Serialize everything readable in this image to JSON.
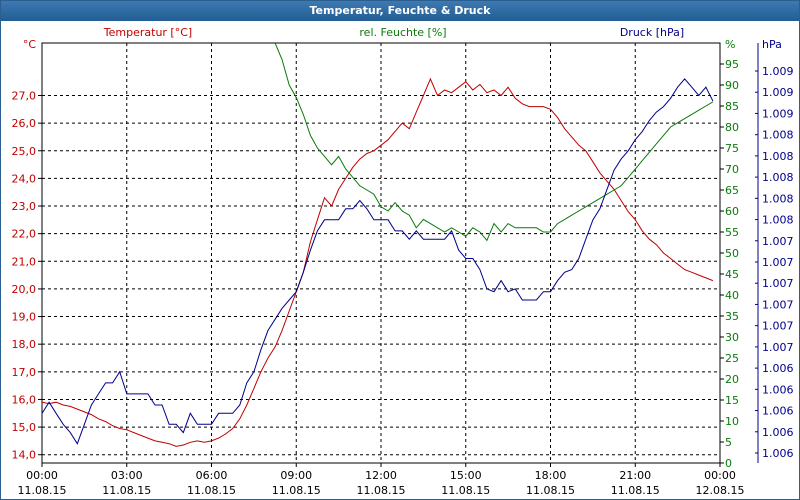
{
  "window": {
    "title": "Temperatur, Feuchte & Druck"
  },
  "colors": {
    "temperature": "#c00000",
    "humidity": "#0a7a0a",
    "pressure": "#00008b",
    "grid": "#000000",
    "titlebar": "#2a6aa5"
  },
  "chart_data": {
    "type": "line",
    "title": "Temperatur, Feuchte & Druck",
    "grid": true,
    "x_axis": {
      "ticks": [
        {
          "time": "00:00",
          "date": "11.08.15"
        },
        {
          "time": "03:00",
          "date": "11.08.15"
        },
        {
          "time": "06:00",
          "date": "11.08.15"
        },
        {
          "time": "09:00",
          "date": "11.08.15"
        },
        {
          "time": "12:00",
          "date": "11.08.15"
        },
        {
          "time": "15:00",
          "date": "11.08.15"
        },
        {
          "time": "18:00",
          "date": "11.08.15"
        },
        {
          "time": "21:00",
          "date": "11.08.15"
        },
        {
          "time": "00:00",
          "date": "12.08.15"
        }
      ]
    },
    "y_axes": [
      {
        "side": "left",
        "label": "Temperatur [°C]",
        "unit": "°C",
        "range": [
          13.7,
          28.9
        ],
        "ticks": [
          "14,0",
          "15,0",
          "16,0",
          "17,0",
          "18,0",
          "19,0",
          "20,0",
          "21,0",
          "22,0",
          "23,0",
          "24,0",
          "25,0",
          "26,0",
          "27,0"
        ]
      },
      {
        "side": "right",
        "label": "rel. Feuchte [%]",
        "unit": "%",
        "range": [
          0,
          100
        ],
        "ticks": [
          "0",
          "5",
          "10",
          "15",
          "20",
          "25",
          "30",
          "35",
          "40",
          "45",
          "50",
          "55",
          "60",
          "65",
          "70",
          "75",
          "80",
          "85",
          "90",
          "95"
        ]
      },
      {
        "side": "right-outer",
        "label": "Druck [hPa]",
        "unit": "hPa",
        "ticks": [
          "1.006",
          "1.006",
          "1.006",
          "1.006",
          "1.006",
          "1.007",
          "1.007",
          "1.007",
          "1.007",
          "1.007",
          "1.007",
          "1.008",
          "1.008",
          "1.008",
          "1.008",
          "1.008",
          "1.009",
          "1.009",
          "1.009"
        ]
      }
    ],
    "series": [
      {
        "name": "Temperatur [°C]",
        "axis": "left",
        "color": "#c00000",
        "points": [
          [
            0.0,
            15.9
          ],
          [
            0.25,
            15.85
          ],
          [
            0.5,
            15.9
          ],
          [
            0.75,
            15.8
          ],
          [
            1.0,
            15.75
          ],
          [
            1.25,
            15.65
          ],
          [
            1.5,
            15.55
          ],
          [
            1.75,
            15.45
          ],
          [
            2.0,
            15.3
          ],
          [
            2.25,
            15.2
          ],
          [
            2.5,
            15.05
          ],
          [
            2.75,
            14.95
          ],
          [
            3.0,
            14.9
          ],
          [
            3.25,
            14.8
          ],
          [
            3.5,
            14.7
          ],
          [
            3.75,
            14.6
          ],
          [
            4.0,
            14.5
          ],
          [
            4.25,
            14.45
          ],
          [
            4.5,
            14.4
          ],
          [
            4.75,
            14.3
          ],
          [
            5.0,
            14.35
          ],
          [
            5.25,
            14.45
          ],
          [
            5.5,
            14.5
          ],
          [
            5.75,
            14.45
          ],
          [
            6.0,
            14.5
          ],
          [
            6.25,
            14.6
          ],
          [
            6.5,
            14.75
          ],
          [
            6.75,
            14.95
          ],
          [
            7.0,
            15.3
          ],
          [
            7.25,
            15.8
          ],
          [
            7.5,
            16.4
          ],
          [
            7.75,
            17.0
          ],
          [
            8.0,
            17.5
          ],
          [
            8.25,
            17.9
          ],
          [
            8.5,
            18.5
          ],
          [
            8.75,
            19.2
          ],
          [
            9.0,
            19.9
          ],
          [
            9.25,
            20.6
          ],
          [
            9.5,
            21.7
          ],
          [
            9.75,
            22.5
          ],
          [
            10.0,
            23.3
          ],
          [
            10.25,
            23.0
          ],
          [
            10.5,
            23.6
          ],
          [
            10.75,
            24.0
          ],
          [
            11.0,
            24.4
          ],
          [
            11.25,
            24.7
          ],
          [
            11.5,
            24.9
          ],
          [
            11.75,
            25.0
          ],
          [
            12.0,
            25.2
          ],
          [
            12.25,
            25.4
          ],
          [
            12.5,
            25.7
          ],
          [
            12.75,
            26.0
          ],
          [
            13.0,
            25.8
          ],
          [
            13.25,
            26.4
          ],
          [
            13.5,
            27.0
          ],
          [
            13.75,
            27.6
          ],
          [
            14.0,
            27.0
          ],
          [
            14.25,
            27.2
          ],
          [
            14.5,
            27.1
          ],
          [
            14.75,
            27.3
          ],
          [
            15.0,
            27.5
          ],
          [
            15.25,
            27.2
          ],
          [
            15.5,
            27.4
          ],
          [
            15.75,
            27.1
          ],
          [
            16.0,
            27.2
          ],
          [
            16.25,
            27.0
          ],
          [
            16.5,
            27.3
          ],
          [
            16.75,
            26.9
          ],
          [
            17.0,
            26.7
          ],
          [
            17.25,
            26.6
          ],
          [
            17.5,
            26.6
          ],
          [
            17.75,
            26.6
          ],
          [
            18.0,
            26.5
          ],
          [
            18.25,
            26.2
          ],
          [
            18.5,
            25.8
          ],
          [
            18.75,
            25.5
          ],
          [
            19.0,
            25.2
          ],
          [
            19.25,
            25.0
          ],
          [
            19.5,
            24.6
          ],
          [
            19.75,
            24.2
          ],
          [
            20.0,
            23.9
          ],
          [
            20.25,
            23.6
          ],
          [
            20.5,
            23.2
          ],
          [
            20.75,
            22.8
          ],
          [
            21.0,
            22.5
          ],
          [
            21.25,
            22.1
          ],
          [
            21.5,
            21.8
          ],
          [
            21.75,
            21.6
          ],
          [
            22.0,
            21.3
          ],
          [
            22.25,
            21.1
          ],
          [
            22.5,
            20.9
          ],
          [
            22.75,
            20.7
          ],
          [
            23.0,
            20.6
          ],
          [
            23.25,
            20.5
          ],
          [
            23.5,
            20.4
          ],
          [
            23.75,
            20.3
          ]
        ]
      },
      {
        "name": "rel. Feuchte [%]",
        "axis": "right",
        "color": "#0a7a0a",
        "points": [
          [
            8.25,
            100
          ],
          [
            8.5,
            96
          ],
          [
            8.75,
            90
          ],
          [
            9.0,
            87
          ],
          [
            9.25,
            83
          ],
          [
            9.5,
            78
          ],
          [
            9.75,
            75
          ],
          [
            10.0,
            73
          ],
          [
            10.25,
            71
          ],
          [
            10.5,
            73
          ],
          [
            10.75,
            70
          ],
          [
            11.0,
            68
          ],
          [
            11.25,
            66
          ],
          [
            11.5,
            65
          ],
          [
            11.75,
            64
          ],
          [
            12.0,
            61
          ],
          [
            12.25,
            60
          ],
          [
            12.5,
            62
          ],
          [
            12.75,
            60
          ],
          [
            13.0,
            59
          ],
          [
            13.25,
            56
          ],
          [
            13.5,
            58
          ],
          [
            13.75,
            57
          ],
          [
            14.0,
            56
          ],
          [
            14.25,
            55
          ],
          [
            14.5,
            56
          ],
          [
            14.75,
            55
          ],
          [
            15.0,
            54
          ],
          [
            15.25,
            56
          ],
          [
            15.5,
            55
          ],
          [
            15.75,
            53
          ],
          [
            16.0,
            57
          ],
          [
            16.25,
            55
          ],
          [
            16.5,
            57
          ],
          [
            16.75,
            56
          ],
          [
            17.0,
            56
          ],
          [
            17.25,
            56
          ],
          [
            17.5,
            56
          ],
          [
            17.75,
            55
          ],
          [
            18.0,
            55
          ],
          [
            18.25,
            57
          ],
          [
            18.5,
            58
          ],
          [
            18.75,
            59
          ],
          [
            19.0,
            60
          ],
          [
            19.25,
            61
          ],
          [
            19.5,
            62
          ],
          [
            19.75,
            63
          ],
          [
            20.0,
            64
          ],
          [
            20.25,
            65
          ],
          [
            20.5,
            66
          ],
          [
            20.75,
            68
          ],
          [
            21.0,
            70
          ],
          [
            21.25,
            72
          ],
          [
            21.5,
            74
          ],
          [
            21.75,
            76
          ],
          [
            22.0,
            78
          ],
          [
            22.25,
            80
          ],
          [
            22.5,
            81
          ],
          [
            22.75,
            82
          ],
          [
            23.0,
            83
          ],
          [
            23.25,
            84
          ],
          [
            23.5,
            85
          ],
          [
            23.75,
            86
          ]
        ]
      },
      {
        "name": "Druck [hPa]",
        "axis": "right-outer",
        "color": "#00008b",
        "points": [
          [
            0.0,
            15.5
          ],
          [
            0.25,
            15.9
          ],
          [
            0.5,
            15.5
          ],
          [
            0.75,
            15.1
          ],
          [
            1.0,
            14.8
          ],
          [
            1.25,
            14.4
          ],
          [
            1.5,
            15.1
          ],
          [
            1.75,
            15.8
          ],
          [
            2.0,
            16.2
          ],
          [
            2.25,
            16.6
          ],
          [
            2.5,
            16.6
          ],
          [
            2.75,
            17.0
          ],
          [
            3.0,
            16.2
          ],
          [
            3.25,
            16.2
          ],
          [
            3.5,
            16.2
          ],
          [
            3.75,
            16.2
          ],
          [
            4.0,
            15.8
          ],
          [
            4.25,
            15.8
          ],
          [
            4.5,
            15.1
          ],
          [
            4.75,
            15.1
          ],
          [
            5.0,
            14.8
          ],
          [
            5.25,
            15.5
          ],
          [
            5.5,
            15.1
          ],
          [
            5.75,
            15.1
          ],
          [
            6.0,
            15.1
          ],
          [
            6.25,
            15.5
          ],
          [
            6.5,
            15.5
          ],
          [
            6.75,
            15.5
          ],
          [
            7.0,
            15.8
          ],
          [
            7.25,
            16.6
          ],
          [
            7.5,
            17.0
          ],
          [
            7.75,
            17.8
          ],
          [
            8.0,
            18.5
          ],
          [
            8.25,
            18.9
          ],
          [
            8.5,
            19.3
          ],
          [
            8.75,
            19.6
          ],
          [
            9.0,
            19.9
          ],
          [
            9.25,
            20.6
          ],
          [
            9.5,
            21.4
          ],
          [
            9.75,
            22.1
          ],
          [
            10.0,
            22.5
          ],
          [
            10.25,
            22.5
          ],
          [
            10.5,
            22.5
          ],
          [
            10.75,
            22.9
          ],
          [
            11.0,
            22.9
          ],
          [
            11.25,
            23.2
          ],
          [
            11.5,
            22.9
          ],
          [
            11.75,
            22.5
          ],
          [
            12.0,
            22.5
          ],
          [
            12.25,
            22.5
          ],
          [
            12.5,
            22.1
          ],
          [
            12.75,
            22.1
          ],
          [
            13.0,
            21.8
          ],
          [
            13.25,
            22.1
          ],
          [
            13.5,
            21.8
          ],
          [
            13.75,
            21.8
          ],
          [
            14.0,
            21.8
          ],
          [
            14.25,
            21.8
          ],
          [
            14.5,
            22.1
          ],
          [
            14.75,
            21.4
          ],
          [
            15.0,
            21.1
          ],
          [
            15.25,
            21.1
          ],
          [
            15.5,
            20.7
          ],
          [
            15.75,
            20.0
          ],
          [
            16.0,
            19.9
          ],
          [
            16.25,
            20.3
          ],
          [
            16.5,
            19.9
          ],
          [
            16.75,
            20.0
          ],
          [
            17.0,
            19.6
          ],
          [
            17.25,
            19.6
          ],
          [
            17.5,
            19.6
          ],
          [
            17.75,
            19.9
          ],
          [
            18.0,
            19.9
          ],
          [
            18.25,
            20.3
          ],
          [
            18.5,
            20.6
          ],
          [
            18.75,
            20.7
          ],
          [
            19.0,
            21.1
          ],
          [
            19.25,
            21.8
          ],
          [
            19.5,
            22.5
          ],
          [
            19.75,
            22.9
          ],
          [
            20.0,
            23.6
          ],
          [
            20.25,
            24.3
          ],
          [
            20.5,
            24.7
          ],
          [
            20.75,
            25.0
          ],
          [
            21.0,
            25.4
          ],
          [
            21.25,
            25.7
          ],
          [
            21.5,
            26.1
          ],
          [
            21.75,
            26.4
          ],
          [
            22.0,
            26.6
          ],
          [
            22.25,
            26.9
          ],
          [
            22.5,
            27.3
          ],
          [
            22.75,
            27.6
          ],
          [
            23.0,
            27.3
          ],
          [
            23.25,
            27.0
          ],
          [
            23.5,
            27.3
          ],
          [
            23.75,
            26.8
          ]
        ]
      }
    ]
  }
}
